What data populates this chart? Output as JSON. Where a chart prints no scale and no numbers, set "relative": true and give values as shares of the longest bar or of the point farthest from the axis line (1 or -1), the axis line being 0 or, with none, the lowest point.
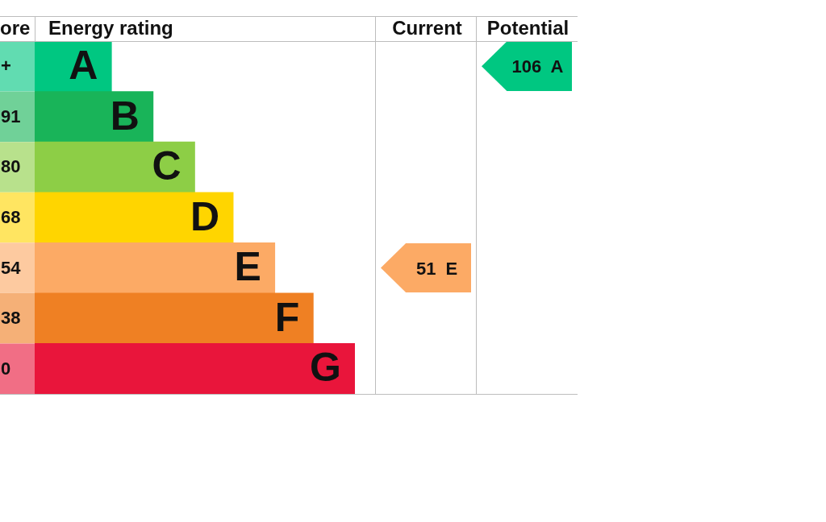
{
  "chart_data": {
    "type": "bar",
    "orientation": "horizontal",
    "relative": true,
    "categories": [
      "A",
      "B",
      "C",
      "D",
      "E",
      "F",
      "G"
    ],
    "values": [
      0.24,
      0.37,
      0.5,
      0.62,
      0.75,
      0.87,
      1
    ],
    "colors": [
      "#00c781",
      "#19b459",
      "#8dce46",
      "#ffd500",
      "#fcaa65",
      "#ef8023",
      "#e9153b"
    ],
    "title": "Energy rating",
    "annotations": [
      "ore",
      "+",
      "91",
      "80",
      "68",
      "54",
      "38",
      "0",
      "Current",
      "Potential",
      "51 E",
      "106 A"
    ]
  }
}
